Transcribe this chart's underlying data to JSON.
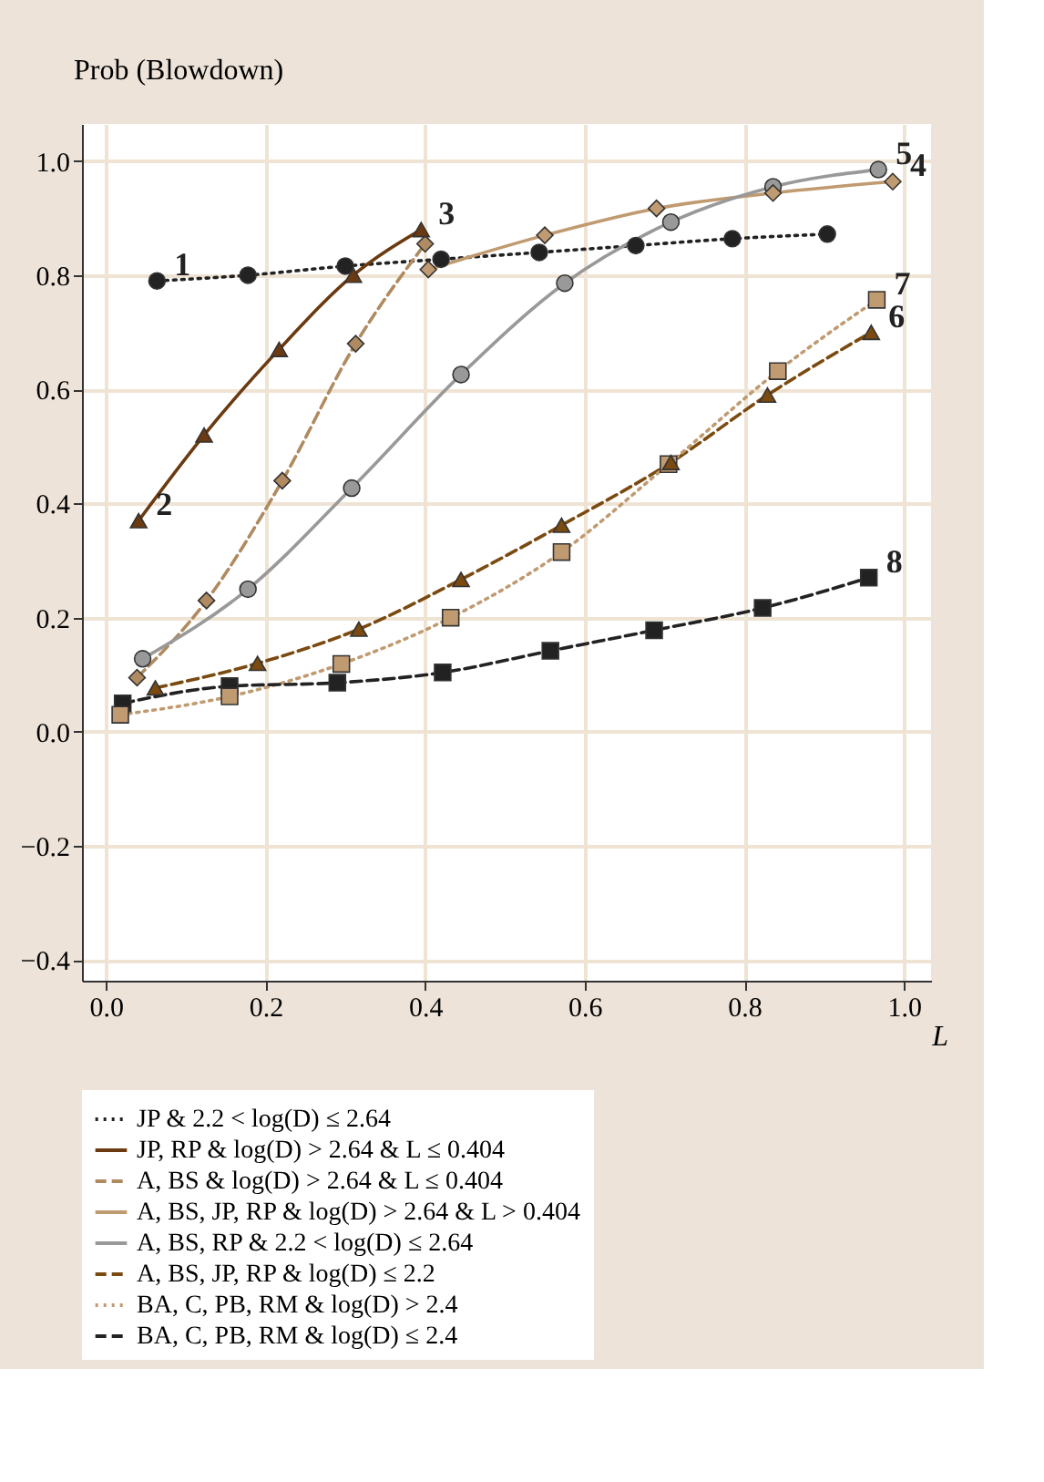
{
  "chart_data": {
    "type": "line",
    "xlabel": "L",
    "ylabel": "Prob (Blowdown)",
    "xlim": [
      -0.03,
      1.034
    ],
    "ylim": [
      -0.436,
      1.065
    ],
    "xticks": [
      {
        "value": 0,
        "label": "0.0"
      },
      0.2,
      0.4,
      0.6,
      0.8,
      {
        "value": 1,
        "label": "1.0"
      }
    ],
    "yticks": [
      -0.4,
      -0.2,
      {
        "value": 0,
        "label": "0.0"
      },
      0.2,
      0.4,
      0.6,
      0.8,
      {
        "value": 1,
        "label": "1.0"
      }
    ],
    "grid": true,
    "legend": "bottom",
    "series": [
      {
        "name": "JP & 2.2 < log(D) ≤ 2.64",
        "color": "#222222",
        "line_style": "dotted",
        "marker": "circle",
        "x": [
          0.064,
          0.178,
          0.3,
          0.42,
          0.543,
          0.664,
          0.785,
          0.904
        ],
        "values": [
          0.79,
          0.8,
          0.816,
          0.828,
          0.84,
          0.852,
          0.864,
          0.872
        ]
      },
      {
        "name": "JP, RP & log(D) > 2.64 & L ≤ 0.404",
        "color": "#6b3a10",
        "line_style": "solid",
        "marker": "triangle",
        "x": [
          0.041,
          0.123,
          0.217,
          0.31,
          0.395
        ],
        "values": [
          0.37,
          0.52,
          0.67,
          0.8,
          0.88
        ]
      },
      {
        "name": "A, BS & log(D) > 2.64 & L ≤ 0.404",
        "color": "#b08a60",
        "line_style": "dashed",
        "marker": "diamond",
        "x": [
          0.039,
          0.126,
          0.221,
          0.313,
          0.4
        ],
        "values": [
          0.095,
          0.23,
          0.44,
          0.68,
          0.855
        ]
      },
      {
        "name": "A, BS, JP, RP & log(D) > 2.64 & L > 0.404",
        "color": "#c09a70",
        "line_style": "solid",
        "marker": "diamond",
        "x": [
          0.404,
          0.55,
          0.69,
          0.836,
          0.986
        ],
        "values": [
          0.81,
          0.87,
          0.917,
          0.944,
          0.964
        ]
      },
      {
        "name": "A, BS, RP & 2.2 < log(D) ≤ 2.64",
        "color": "#999999",
        "line_style": "solid",
        "marker": "circle",
        "x": [
          0.046,
          0.178,
          0.308,
          0.445,
          0.575,
          0.708,
          0.836,
          0.968
        ],
        "values": [
          0.128,
          0.25,
          0.427,
          0.626,
          0.786,
          0.893,
          0.955,
          0.985
        ]
      },
      {
        "name": "A, BS, JP, RP & log(D) ≤ 2.2",
        "color": "#7a4a10",
        "line_style": "dashed",
        "marker": "triangle",
        "x": [
          0.062,
          0.19,
          0.317,
          0.445,
          0.571,
          0.708,
          0.829,
          0.959
        ],
        "values": [
          0.077,
          0.12,
          0.18,
          0.267,
          0.362,
          0.472,
          0.59,
          0.7
        ]
      },
      {
        "name": "BA, C, PB, RM & log(D) > 2.4",
        "color": "#c09a70",
        "line_style": "dotted",
        "marker": "square",
        "x": [
          0.018,
          0.155,
          0.295,
          0.432,
          0.571,
          0.705,
          0.842,
          0.966
        ],
        "values": [
          0.03,
          0.062,
          0.119,
          0.2,
          0.315,
          0.469,
          0.632,
          0.757
        ]
      },
      {
        "name": "BA, C, PB, RM & log(D) ≤ 2.4",
        "color": "#222222",
        "line_style": "dashed",
        "marker": "square",
        "x": [
          0.021,
          0.155,
          0.29,
          0.422,
          0.557,
          0.687,
          0.823,
          0.956
        ],
        "values": [
          0.05,
          0.08,
          0.086,
          0.104,
          0.142,
          0.178,
          0.217,
          0.27
        ]
      }
    ],
    "annotations": [
      {
        "text": "1",
        "x": 0.064,
        "y": 0.79
      },
      {
        "text": "2",
        "x": 0.041,
        "y": 0.37
      },
      {
        "text": "3",
        "x": 0.395,
        "y": 0.88
      },
      {
        "text": "4",
        "x": 0.986,
        "y": 0.964
      },
      {
        "text": "5",
        "x": 0.968,
        "y": 0.985
      },
      {
        "text": "6",
        "x": 0.959,
        "y": 0.7
      },
      {
        "text": "7",
        "x": 0.966,
        "y": 0.757
      },
      {
        "text": "8",
        "x": 0.956,
        "y": 0.27
      }
    ]
  }
}
